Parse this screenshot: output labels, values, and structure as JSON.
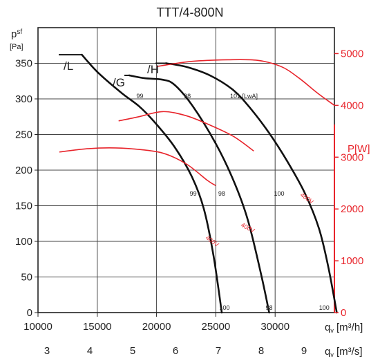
{
  "chart_data": {
    "type": "line",
    "title": "TTT/4-800N",
    "y_left": {
      "symbol": "p",
      "sub": "sf",
      "unit": "[Pa]",
      "range": [
        0,
        400
      ],
      "ticks": [
        0,
        50,
        100,
        150,
        200,
        250,
        300,
        350
      ]
    },
    "y_right": {
      "label": "P[W]",
      "range": [
        0,
        5500
      ],
      "ticks": [
        0,
        1000,
        2000,
        3000,
        4000,
        5000
      ],
      "color": "#e8242b"
    },
    "x_primary": {
      "symbol": "q",
      "sub": "v",
      "unit": "[m³/h]",
      "range": [
        10000,
        35000
      ],
      "ticks": [
        10000,
        15000,
        20000,
        25000,
        30000
      ]
    },
    "x_secondary": {
      "symbol": "q",
      "sub": "v",
      "unit": "[m³/s]",
      "ticks": [
        3,
        4,
        5,
        6,
        7,
        8,
        9
      ]
    },
    "pressure_curves": [
      {
        "name": "/L",
        "points": [
          [
            13700,
            362
          ],
          [
            15000,
            338
          ],
          [
            17000,
            309
          ],
          [
            18500,
            290
          ],
          [
            19800,
            268
          ],
          [
            21500,
            233
          ],
          [
            23000,
            190
          ],
          [
            24000,
            145
          ],
          [
            24800,
            80
          ],
          [
            25500,
            0
          ]
        ]
      },
      {
        "name": "/G",
        "points": [
          [
            17700,
            333
          ],
          [
            19000,
            329
          ],
          [
            20500,
            327
          ],
          [
            21500,
            320
          ],
          [
            23000,
            291
          ],
          [
            25000,
            237
          ],
          [
            26500,
            185
          ],
          [
            27700,
            130
          ],
          [
            28800,
            55
          ],
          [
            29500,
            0
          ]
        ]
      },
      {
        "name": "/H",
        "points": [
          [
            20800,
            350
          ],
          [
            22500,
            345
          ],
          [
            24500,
            333
          ],
          [
            26500,
            312
          ],
          [
            28000,
            285
          ],
          [
            29500,
            252
          ],
          [
            31000,
            213
          ],
          [
            32500,
            168
          ],
          [
            33700,
            118
          ],
          [
            34500,
            63
          ],
          [
            35200,
            0
          ]
        ]
      }
    ],
    "power_curves": [
      {
        "name": "400V",
        "points": [
          [
            11800,
            3100
          ],
          [
            14000,
            3160
          ],
          [
            16000,
            3180
          ],
          [
            18000,
            3160
          ],
          [
            20500,
            3080
          ],
          [
            22500,
            2870
          ],
          [
            24300,
            2550
          ],
          [
            25000,
            2450
          ]
        ]
      },
      {
        "name": "400V",
        "points": [
          [
            16800,
            3700
          ],
          [
            18500,
            3780
          ],
          [
            20500,
            3880
          ],
          [
            22500,
            3800
          ],
          [
            24500,
            3620
          ],
          [
            26500,
            3400
          ],
          [
            28200,
            3120
          ]
        ]
      },
      {
        "name": "400V",
        "points": [
          [
            20000,
            4750
          ],
          [
            23000,
            4850
          ],
          [
            26000,
            4880
          ],
          [
            28500,
            4870
          ],
          [
            30500,
            4750
          ],
          [
            32000,
            4530
          ],
          [
            33500,
            4250
          ],
          [
            35000,
            4000
          ]
        ]
      }
    ],
    "sound_labels": [
      {
        "text": "99",
        "x": 18300,
        "y": 301
      },
      {
        "text": "98",
        "x": 22300,
        "y": 301
      },
      {
        "text": "101 [LwA]",
        "x": 26200,
        "y": 301
      },
      {
        "text": "99",
        "x": 22800,
        "y": 164
      },
      {
        "text": "98",
        "x": 25200,
        "y": 164
      },
      {
        "text": "100",
        "x": 29900,
        "y": 164
      },
      {
        "text": "100",
        "x": 25300,
        "y": 4
      },
      {
        "text": "98",
        "x": 29200,
        "y": 4
      },
      {
        "text": "100",
        "x": 33700,
        "y": 4
      }
    ],
    "grid": true
  }
}
